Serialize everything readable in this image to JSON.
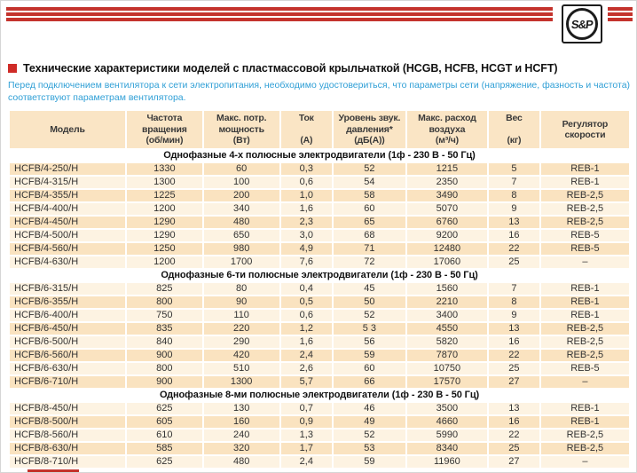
{
  "logo": {
    "text": "S&P"
  },
  "header": {
    "title": "Технические характеристики моделей с пластмассовой крыльчаткой (HCGB, HCFB, HCGT и HCFT)",
    "note": "Перед подключением вентилятора к сети электропитания, необходимо удостовериться, что параметры сети (напряжение, фазность и частота) соответствуют параметрам вентилятора."
  },
  "colors": {
    "accent_red": "#c4332d",
    "note_blue": "#2f9fd6",
    "row_dark": "#fae3c0",
    "row_light": "#fdf3e2",
    "header_bg": "#fae5c5"
  },
  "table": {
    "headers": [
      "Модель",
      "Частота\nвращения\n(об/мин)",
      "Макс. потр.\nмощность\n(Вт)",
      "Ток\n\n(А)",
      "Уровень звук.\nдавления*\n(дБ(А))",
      "Макс. расход\nвоздуха\n(м³/ч)",
      "Вес\n\n(кг)",
      "Регулятор\nскорости"
    ],
    "sections": [
      {
        "title": "Однофазные 4-х полюсные электродвигатели (1ф - 230 В - 50 Гц)",
        "first_row_shade": "dark",
        "rows": [
          [
            "HCFB/4-250/H",
            "1330",
            "60",
            "0,3",
            "52",
            "1215",
            "5",
            "REB-1"
          ],
          [
            "HCFB/4-315/H",
            "1300",
            "100",
            "0,6",
            "54",
            "2350",
            "7",
            "REB-1"
          ],
          [
            "HCFB/4-355/H",
            "1225",
            "200",
            "1,0",
            "58",
            "3490",
            "8",
            "REB-2,5"
          ],
          [
            "HCFB/4-400/H",
            "1200",
            "340",
            "1,6",
            "60",
            "5070",
            "9",
            "REB-2,5"
          ],
          [
            "HCFB/4-450/H",
            "1290",
            "480",
            "2,3",
            "65",
            "6760",
            "13",
            "REB-2,5"
          ],
          [
            "HCFB/4-500/H",
            "1290",
            "650",
            "3,0",
            "68",
            "9200",
            "16",
            "REB-5"
          ],
          [
            "HCFB/4-560/H",
            "1250",
            "980",
            "4,9",
            "71",
            "12480",
            "22",
            "REB-5"
          ],
          [
            "HCFB/4-630/H",
            "1200",
            "1700",
            "7,6",
            "72",
            "17060",
            "25",
            "–"
          ]
        ]
      },
      {
        "title": "Однофазные 6-ти полюсные электродвигатели (1ф - 230 В - 50 Гц)",
        "first_row_shade": "light",
        "rows": [
          [
            "HCFB/6-315/H",
            "825",
            "80",
            "0,4",
            "45",
            "1560",
            "7",
            "REB-1"
          ],
          [
            "HCFB/6-355/H",
            "800",
            "90",
            "0,5",
            "50",
            "2210",
            "8",
            "REB-1"
          ],
          [
            "HCFB/6-400/H",
            "750",
            "110",
            "0,6",
            "52",
            "3400",
            "9",
            "REB-1"
          ],
          [
            "HCFB/6-450/H",
            "835",
            "220",
            "1,2",
            "5 3",
            "4550",
            "13",
            "REB-2,5"
          ],
          [
            "HCFB/6-500/H",
            "840",
            "290",
            "1,6",
            "56",
            "5820",
            "16",
            "REB-2,5"
          ],
          [
            "HCFB/6-560/H",
            "900",
            "420",
            "2,4",
            "59",
            "7870",
            "22",
            "REB-2,5"
          ],
          [
            "HCFB/6-630/H",
            "800",
            "510",
            "2,6",
            "60",
            "10750",
            "25",
            "REB-5"
          ],
          [
            "HCFB/6-710/H",
            "900",
            "1300",
            "5,7",
            "66",
            "17570",
            "27",
            "–"
          ]
        ]
      },
      {
        "title": "Однофазные 8-ми полюсные электродвигатели (1ф - 230 В - 50 Гц)",
        "first_row_shade": "light",
        "rows": [
          [
            "HCFB/8-450/H",
            "625",
            "130",
            "0,7",
            "46",
            "3500",
            "13",
            "REB-1"
          ],
          [
            "HCFB/8-500/H",
            "605",
            "160",
            "0,9",
            "49",
            "4660",
            "16",
            "REB-1"
          ],
          [
            "HCFB/8-560/H",
            "610",
            "240",
            "1,3",
            "52",
            "5990",
            "22",
            "REB-2,5"
          ],
          [
            "HCFB/8-630/H",
            "585",
            "320",
            "1,7",
            "53",
            "8340",
            "25",
            "REB-2,5"
          ],
          [
            "HCFB/8-710/H",
            "625",
            "480",
            "2,4",
            "59",
            "11960",
            "27",
            "–"
          ]
        ]
      }
    ]
  }
}
